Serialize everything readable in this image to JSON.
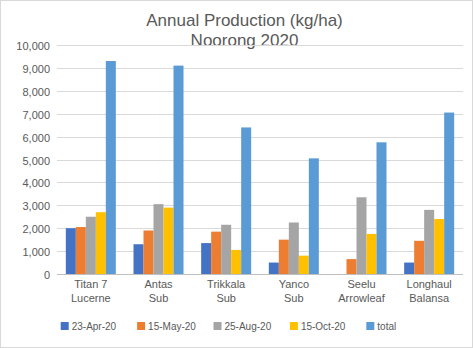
{
  "chart_data": {
    "type": "bar",
    "title": "Annual Production (kg/ha)",
    "subtitle": "Noorong 2020",
    "categories": [
      "Titan 7 Lucerne",
      "Antas Sub",
      "Trikkala Sub",
      "Yanco Sub",
      "Seelu Arrowleaf",
      "Longhaul Balansa"
    ],
    "series": [
      {
        "name": "23-Apr-20",
        "color": "#4472c4",
        "values": [
          2000,
          1300,
          1350,
          500,
          0,
          500
        ]
      },
      {
        "name": "15-May-20",
        "color": "#ed7d31",
        "values": [
          2050,
          1900,
          1850,
          1500,
          650,
          1450
        ]
      },
      {
        "name": "25-Aug-20",
        "color": "#a5a5a5",
        "values": [
          2500,
          3050,
          2150,
          2250,
          3350,
          2800
        ]
      },
      {
        "name": "15-Oct-20",
        "color": "#ffc000",
        "values": [
          2700,
          2900,
          1050,
          800,
          1750,
          2400
        ]
      },
      {
        "name": "total",
        "color": "#5b9bd5",
        "values": [
          9300,
          9100,
          6400,
          5050,
          5750,
          7050
        ]
      }
    ],
    "ylim": [
      0,
      10000
    ],
    "yticks": [
      0,
      {
        "value": 1000,
        "label": "1,000"
      },
      {
        "value": 2000,
        "label": "2,000"
      },
      {
        "value": 3000,
        "label": "3,000"
      },
      {
        "value": 4000,
        "label": "4,000"
      },
      {
        "value": 5000,
        "label": "5,000"
      },
      {
        "value": 6000,
        "label": "6,000"
      },
      {
        "value": 7000,
        "label": "7,000"
      },
      {
        "value": 8000,
        "label": "8,000"
      },
      {
        "value": 9000,
        "label": "9,000"
      },
      {
        "value": 10000,
        "label": "10,000"
      }
    ],
    "grid": true,
    "legend": "bottom"
  }
}
